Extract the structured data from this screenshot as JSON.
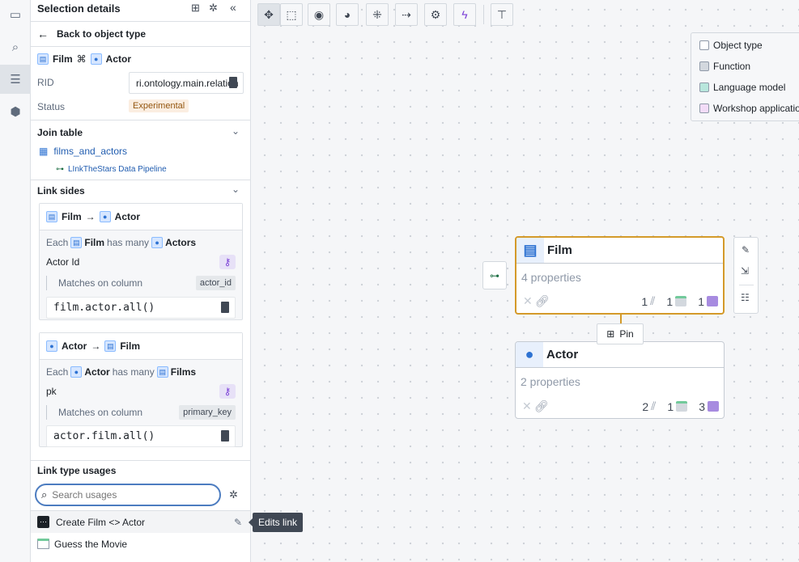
{
  "rail": {
    "items": [
      {
        "icon": "window-icon"
      },
      {
        "icon": "search-icon"
      },
      {
        "icon": "list-icon",
        "active": true
      },
      {
        "icon": "cube-icon"
      }
    ]
  },
  "panel": {
    "title": "Selection details",
    "back": "Back to object type",
    "link": {
      "from": "Film",
      "to": "Actor"
    },
    "rid_label": "RID",
    "rid_value": "ri.ontology.main.relation",
    "status_label": "Status",
    "status_value": "Experimental",
    "join_table": {
      "title": "Join table",
      "dataset": "films_and_actors",
      "pipeline": "LInkTheStars Data Pipeline"
    },
    "link_sides": {
      "title": "Link sides",
      "sides": [
        {
          "from": "Film",
          "to": "Actor",
          "each": "Each",
          "has_many": "has many",
          "target_plural": "Actors",
          "key": "Actor Id",
          "matches_label": "Matches on column",
          "column": "actor_id",
          "code": "film.actor.all()"
        },
        {
          "from": "Actor",
          "to": "Film",
          "each": "Each",
          "has_many": "has many",
          "target_plural": "Films",
          "key": "pk",
          "matches_label": "Matches on column",
          "column": "primary_key",
          "code": "actor.film.all()"
        }
      ]
    },
    "usages": {
      "title": "Link type usages",
      "search_placeholder": "Search usages",
      "items": [
        {
          "label": "Create Film <> Actor",
          "icon": "action-icon"
        },
        {
          "label": "Guess the Movie",
          "icon": "workshop-icon"
        }
      ],
      "tooltip": "Edits link"
    }
  },
  "canvas": {
    "toolbar": [
      {
        "icon": "move-icon",
        "active": true
      },
      {
        "icon": "select-icon"
      },
      {
        "icon": "target-icon"
      },
      {
        "icon": "remove-graph-icon"
      },
      {
        "icon": "layout-icon"
      },
      {
        "icon": "flow-icon"
      },
      {
        "icon": "gear-icon"
      },
      {
        "icon": "bolt-icon",
        "color": "#7a3fd6"
      },
      {
        "icon": "add-text-icon"
      }
    ],
    "legend": [
      {
        "label": "Object type",
        "color": "#ffffff"
      },
      {
        "label": "Function",
        "color": "#d3d8de"
      },
      {
        "label": "Language model",
        "color": "#b8e6dc"
      },
      {
        "label": "Workshop application",
        "color": "#f2dcf7"
      }
    ],
    "nodes": [
      {
        "title": "Film",
        "properties": "4 properties",
        "counts": [
          "1",
          "1",
          "1"
        ],
        "selected": true
      },
      {
        "title": "Actor",
        "properties": "2 properties",
        "counts": [
          "2",
          "1",
          "3"
        ],
        "selected": false
      }
    ],
    "pin": "Pin"
  }
}
